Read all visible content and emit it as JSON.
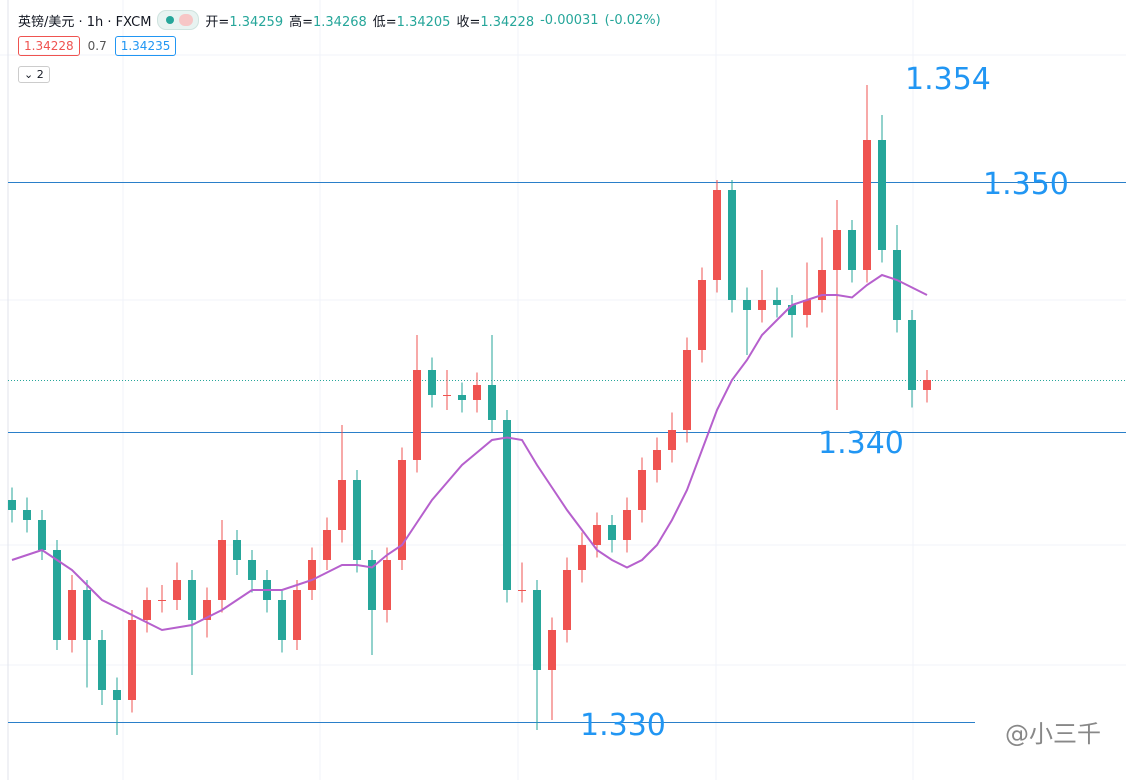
{
  "header": {
    "symbol": "英镑/美元 · 1h · FXCM",
    "open_label": "开=",
    "open": "1.34259",
    "high_label": "高=",
    "high": "1.34268",
    "low_label": "低=",
    "low": "1.34205",
    "close_label": "收=",
    "close": "1.34228",
    "change": "-0.00031",
    "change_pct": "(-0.02%)",
    "sell": "1.34228",
    "spread": "0.7",
    "buy": "1.34235",
    "indicators": "2"
  },
  "chart_data": {
    "type": "candlestick",
    "ylim": [
      1.3263,
      1.3575
    ],
    "up_color": "#ef5350",
    "down_color": "#26a69a",
    "ma_color": "#b660cd",
    "line_color": "#2a7fc9",
    "annotation_color": "#2196f3",
    "candles": [
      [
        1.3375,
        1.338,
        1.3366,
        1.3371
      ],
      [
        1.3371,
        1.3376,
        1.3362,
        1.3367
      ],
      [
        1.3367,
        1.3371,
        1.3351,
        1.3355
      ],
      [
        1.3355,
        1.3359,
        1.3315,
        1.3319
      ],
      [
        1.3319,
        1.3345,
        1.3314,
        1.3339
      ],
      [
        1.3339,
        1.3343,
        1.33,
        1.3319
      ],
      [
        1.3319,
        1.3323,
        1.3293,
        1.3299
      ],
      [
        1.3299,
        1.3304,
        1.3281,
        1.3295
      ],
      [
        1.3295,
        1.3331,
        1.329,
        1.3327
      ],
      [
        1.3327,
        1.334,
        1.3322,
        1.3335
      ],
      [
        1.3335,
        1.3341,
        1.333,
        1.3335
      ],
      [
        1.3335,
        1.335,
        1.3331,
        1.3343
      ],
      [
        1.3343,
        1.3347,
        1.3305,
        1.3327
      ],
      [
        1.3327,
        1.334,
        1.332,
        1.3335
      ],
      [
        1.3335,
        1.3367,
        1.333,
        1.3359
      ],
      [
        1.3359,
        1.3363,
        1.3345,
        1.3351
      ],
      [
        1.3351,
        1.3355,
        1.3338,
        1.3343
      ],
      [
        1.3343,
        1.3347,
        1.333,
        1.3335
      ],
      [
        1.3335,
        1.3339,
        1.3314,
        1.3319
      ],
      [
        1.3319,
        1.3343,
        1.3315,
        1.3339
      ],
      [
        1.3339,
        1.3356,
        1.3335,
        1.3351
      ],
      [
        1.3351,
        1.3368,
        1.3347,
        1.3363
      ],
      [
        1.3363,
        1.3405,
        1.3358,
        1.3383
      ],
      [
        1.3383,
        1.3387,
        1.3346,
        1.3351
      ],
      [
        1.3351,
        1.3355,
        1.3313,
        1.3331
      ],
      [
        1.3331,
        1.3356,
        1.3326,
        1.3351
      ],
      [
        1.3351,
        1.3396,
        1.3347,
        1.3391
      ],
      [
        1.3391,
        1.3441,
        1.3386,
        1.3427
      ],
      [
        1.3427,
        1.3432,
        1.3412,
        1.3417
      ],
      [
        1.3417,
        1.3427,
        1.3411,
        1.3417
      ],
      [
        1.3417,
        1.3422,
        1.341,
        1.3415
      ],
      [
        1.3415,
        1.3426,
        1.341,
        1.3421
      ],
      [
        1.3421,
        1.3441,
        1.3402,
        1.3407
      ],
      [
        1.3407,
        1.3411,
        1.3334,
        1.3339
      ],
      [
        1.3339,
        1.335,
        1.3334,
        1.3339
      ],
      [
        1.3339,
        1.3343,
        1.3283,
        1.3307
      ],
      [
        1.3307,
        1.3328,
        1.3287,
        1.3323
      ],
      [
        1.3323,
        1.3352,
        1.3318,
        1.3347
      ],
      [
        1.3347,
        1.3362,
        1.3342,
        1.3357
      ],
      [
        1.3357,
        1.337,
        1.3352,
        1.3365
      ],
      [
        1.3365,
        1.3369,
        1.3354,
        1.3359
      ],
      [
        1.3359,
        1.3376,
        1.3354,
        1.3371
      ],
      [
        1.3371,
        1.3392,
        1.3366,
        1.3387
      ],
      [
        1.3387,
        1.34,
        1.3382,
        1.3395
      ],
      [
        1.3395,
        1.341,
        1.339,
        1.3403
      ],
      [
        1.3403,
        1.344,
        1.3398,
        1.3435
      ],
      [
        1.3435,
        1.3468,
        1.343,
        1.3463
      ],
      [
        1.3463,
        1.3503,
        1.3458,
        1.3499
      ],
      [
        1.3499,
        1.3503,
        1.345,
        1.3455
      ],
      [
        1.3455,
        1.346,
        1.3433,
        1.3451
      ],
      [
        1.3451,
        1.3467,
        1.3446,
        1.3455
      ],
      [
        1.3455,
        1.346,
        1.3448,
        1.3453
      ],
      [
        1.3453,
        1.3457,
        1.344,
        1.3449
      ],
      [
        1.3449,
        1.347,
        1.3444,
        1.3455
      ],
      [
        1.3455,
        1.348,
        1.345,
        1.3467
      ],
      [
        1.3467,
        1.3495,
        1.3411,
        1.3483
      ],
      [
        1.3483,
        1.3487,
        1.3462,
        1.3467
      ],
      [
        1.3467,
        1.3541,
        1.3462,
        1.3519
      ],
      [
        1.3519,
        1.3529,
        1.347,
        1.3475
      ],
      [
        1.3475,
        1.3485,
        1.3442,
        1.3447
      ],
      [
        1.3447,
        1.3451,
        1.3412,
        1.3419
      ],
      [
        1.3419,
        1.3427,
        1.3414,
        1.3423
      ]
    ],
    "ma": [
      1.3351,
      1.3353,
      1.3355,
      1.3351,
      1.3347,
      1.3341,
      1.3335,
      1.3332,
      1.3329,
      1.3326,
      1.3323,
      1.3324,
      1.3325,
      1.3328,
      1.3331,
      1.3335,
      1.3339,
      1.3339,
      1.3339,
      1.3341,
      1.3343,
      1.3346,
      1.3349,
      1.3349,
      1.3348,
      1.3353,
      1.3357,
      1.3366,
      1.3375,
      1.3382,
      1.3389,
      1.3394,
      1.3399,
      1.34,
      1.3399,
      1.3389,
      1.338,
      1.3371,
      1.3363,
      1.3355,
      1.3351,
      1.3348,
      1.3351,
      1.3357,
      1.3367,
      1.3379,
      1.3395,
      1.3411,
      1.3423,
      1.3431,
      1.3441,
      1.3447,
      1.3453,
      1.3455,
      1.3457,
      1.3457,
      1.3456,
      1.3461,
      1.3465,
      1.3463,
      1.346,
      1.3457
    ],
    "hlines": [
      1.3502,
      1.3402,
      1.3286
    ],
    "last_price": 1.34228,
    "annotations": [
      "1.354",
      "1.350",
      "1.340",
      "1.330"
    ],
    "watermark": "@小三千"
  }
}
